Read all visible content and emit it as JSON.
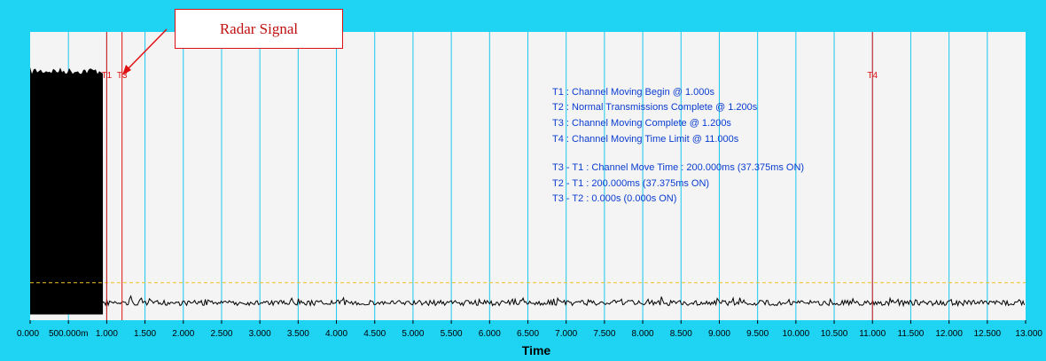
{
  "chart_data": {
    "type": "line",
    "xlabel": "Time",
    "xlim": [
      0,
      13
    ],
    "x_ticks": [
      "0.000",
      "500.000m",
      "1.000",
      "1.500",
      "2.000",
      "2.500",
      "3.000",
      "3.500",
      "4.000",
      "4.500",
      "5.000",
      "5.500",
      "6.000",
      "6.500",
      "7.000",
      "7.500",
      "8.000",
      "8.500",
      "9.000",
      "9.500",
      "10.000",
      "10.500",
      "11.000",
      "11.500",
      "12.000",
      "12.500",
      "13.000"
    ],
    "grid": "vertical",
    "signal": {
      "transmission_end": 0.95,
      "transmission_level": 0.87,
      "noise_floor": 0.06,
      "threshold": 0.13
    },
    "markers": [
      {
        "label": "T1",
        "x": 1.0
      },
      {
        "label": "T3",
        "x": 1.2
      },
      {
        "label": "T4",
        "x": 11.0
      }
    ],
    "annotations": [
      "T1 : Channel Moving Begin @ 1.000s",
      "T2 : Normal Transmissions Complete @ 1.200s",
      "T3 : Channel Moving Complete @ 1.200s",
      "T4 : Channel Moving Time Limit @ 11.000s",
      "T3 - T1 : Channel Move Time : 200.000ms (37.375ms ON)",
      "T2 - T1 : 200.000ms (37.375ms ON)",
      "T3 - T2 : 0.000s (0.000s ON)"
    ],
    "callout": "Radar Signal"
  },
  "colors": {
    "frame": "#1fd3f3",
    "plot_bg": "#f4f4f4",
    "grid": "#18c8f0",
    "signal": "#000000",
    "marker": "#e01010",
    "annotation": "#0a3ccf",
    "threshold": "#f0c020"
  }
}
